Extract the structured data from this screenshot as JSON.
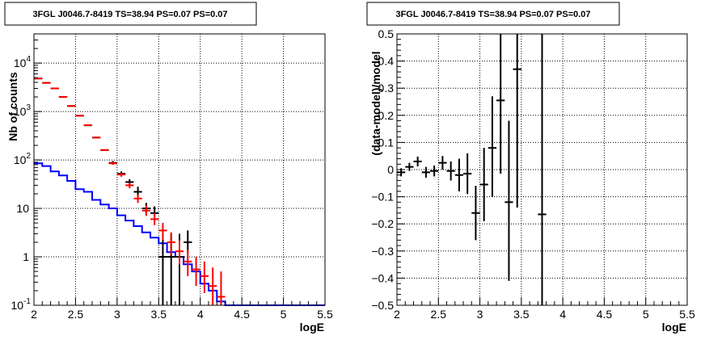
{
  "chart_data": [
    {
      "type": "line",
      "title": "3FGL J0046.7-8419 TS=38.94 PS=0.07 PS=0.07",
      "xlabel": "logE",
      "ylabel": "Nb of counts",
      "xlim": [
        2,
        5.5
      ],
      "ylim": [
        0.1,
        40000
      ],
      "y_scale": "log",
      "grid": true,
      "x_ticks": [
        "2",
        "2.5",
        "3",
        "3.5",
        "4",
        "4.5",
        "5",
        "5.5"
      ],
      "y_ticks": [
        {
          "value": 0.1,
          "base": "10",
          "exp": "-1"
        },
        {
          "value": 1,
          "base": "1",
          "exp": ""
        },
        {
          "value": 10,
          "base": "10",
          "exp": ""
        },
        {
          "value": 100,
          "base": "10",
          "exp": "2"
        },
        {
          "value": 1000,
          "base": "10",
          "exp": "3"
        },
        {
          "value": 10000,
          "base": "10",
          "exp": "4"
        }
      ],
      "series": [
        {
          "kind": "step",
          "color": "#0000ff",
          "x_edges": [
            2.0,
            2.1,
            2.2,
            2.3,
            2.4,
            2.5,
            2.6,
            2.7,
            2.8,
            2.9,
            3.0,
            3.1,
            3.2,
            3.3,
            3.4,
            3.5,
            3.6,
            3.7,
            3.8,
            3.9,
            4.0,
            4.1,
            4.2,
            4.3,
            4.4,
            4.5,
            4.6,
            4.7,
            4.8,
            4.9,
            5.0,
            5.1,
            5.2,
            5.3,
            5.4,
            5.5
          ],
          "values": [
            85,
            75,
            58,
            48,
            37,
            25,
            22,
            15,
            12,
            10,
            7.2,
            5.6,
            4.3,
            3.2,
            2.5,
            1.9,
            1.25,
            1.0,
            0.7,
            0.5,
            0.28,
            0.2,
            0.12,
            0.1,
            0.1,
            0.1,
            0.1,
            0.1,
            0.1,
            0.1,
            0.1,
            0.1,
            0.1,
            0.1,
            0.1
          ]
        },
        {
          "kind": "errorbar",
          "color": "#000000",
          "x": [
            2.05,
            2.15,
            2.25,
            2.35,
            2.45,
            2.55,
            2.65,
            2.75,
            2.85,
            2.95,
            3.05,
            3.15,
            3.25,
            3.35,
            3.45,
            3.55,
            3.65,
            3.75,
            3.85
          ],
          "y": [
            4800,
            3900,
            3000,
            2000,
            1300,
            820,
            520,
            290,
            160,
            87,
            52,
            35,
            22,
            10,
            8,
            1.0,
            1.0,
            1.0,
            2.0
          ],
          "y_low": [
            4800,
            3900,
            3000,
            2000,
            1300,
            820,
            520,
            290,
            160,
            80,
            47,
            30,
            17,
            7.5,
            5.5,
            0.1,
            0.1,
            0.1,
            1.2
          ],
          "y_high": [
            4800,
            3900,
            3000,
            2000,
            1300,
            820,
            520,
            290,
            160,
            95,
            58,
            40,
            28,
            13,
            11,
            3.0,
            3.0,
            3.0,
            3.5
          ]
        },
        {
          "kind": "errorbar",
          "color": "#ff0000",
          "x": [
            2.05,
            2.15,
            2.25,
            2.35,
            2.45,
            2.55,
            2.65,
            2.75,
            2.85,
            2.95,
            3.05,
            3.15,
            3.25,
            3.35,
            3.45,
            3.55,
            3.65,
            3.75,
            3.85,
            3.95,
            4.05,
            4.15,
            4.25
          ],
          "y": [
            4800,
            3900,
            3000,
            2000,
            1300,
            820,
            520,
            290,
            160,
            85,
            50,
            30,
            16,
            9,
            6,
            3.5,
            2.0,
            1.3,
            0.8,
            0.55,
            0.4,
            0.25,
            0.15
          ],
          "y_low": [
            4800,
            3900,
            3000,
            2000,
            1300,
            820,
            520,
            290,
            160,
            79,
            45,
            26,
            13,
            7,
            4.5,
            2.2,
            1.1,
            0.7,
            0.4,
            0.25,
            0.18,
            0.1,
            0.1
          ],
          "y_high": [
            4800,
            3900,
            3000,
            2000,
            1300,
            820,
            520,
            290,
            160,
            91,
            55,
            34,
            19,
            11.5,
            8,
            5,
            3.2,
            2.2,
            1.4,
            1.0,
            0.8,
            0.6,
            0.5
          ]
        }
      ]
    },
    {
      "type": "scatter",
      "title": "3FGL J0046.7-8419 TS=38.94 PS=0.07 PS=0.07",
      "xlabel": "logE",
      "ylabel": "(data-model)/model",
      "xlim": [
        2,
        5.5
      ],
      "ylim": [
        -0.5,
        0.5
      ],
      "grid": true,
      "x_ticks": [
        "2",
        "2.5",
        "3",
        "3.5",
        "4",
        "4.5",
        "5",
        "5.5"
      ],
      "y_ticks": [
        "-0.5",
        "-0.4",
        "-0.3",
        "-0.2",
        "-0.1",
        "0",
        "0.1",
        "0.2",
        "0.3",
        "0.4",
        "0.5"
      ],
      "series": [
        {
          "kind": "errorbar",
          "color": "#000000",
          "x": [
            2.05,
            2.15,
            2.25,
            2.35,
            2.45,
            2.55,
            2.65,
            2.75,
            2.85,
            2.95,
            3.05,
            3.15,
            3.25,
            3.35,
            3.45,
            3.75
          ],
          "y": [
            -0.01,
            0.01,
            0.03,
            -0.01,
            -0.005,
            0.025,
            -0.005,
            -0.02,
            -0.015,
            -0.16,
            -0.055,
            0.08,
            0.255,
            -0.12,
            0.37,
            -0.165
          ],
          "y_low": [
            -0.025,
            -0.005,
            0.012,
            -0.03,
            -0.025,
            0.0,
            -0.04,
            -0.08,
            -0.09,
            -0.26,
            -0.19,
            -0.1,
            -0.015,
            -0.41,
            -0.14,
            -0.5
          ],
          "y_high": [
            0.005,
            0.025,
            0.048,
            0.01,
            0.015,
            0.05,
            0.03,
            0.04,
            0.06,
            -0.06,
            0.08,
            0.27,
            0.5,
            0.18,
            0.5,
            0.5
          ]
        }
      ]
    }
  ]
}
